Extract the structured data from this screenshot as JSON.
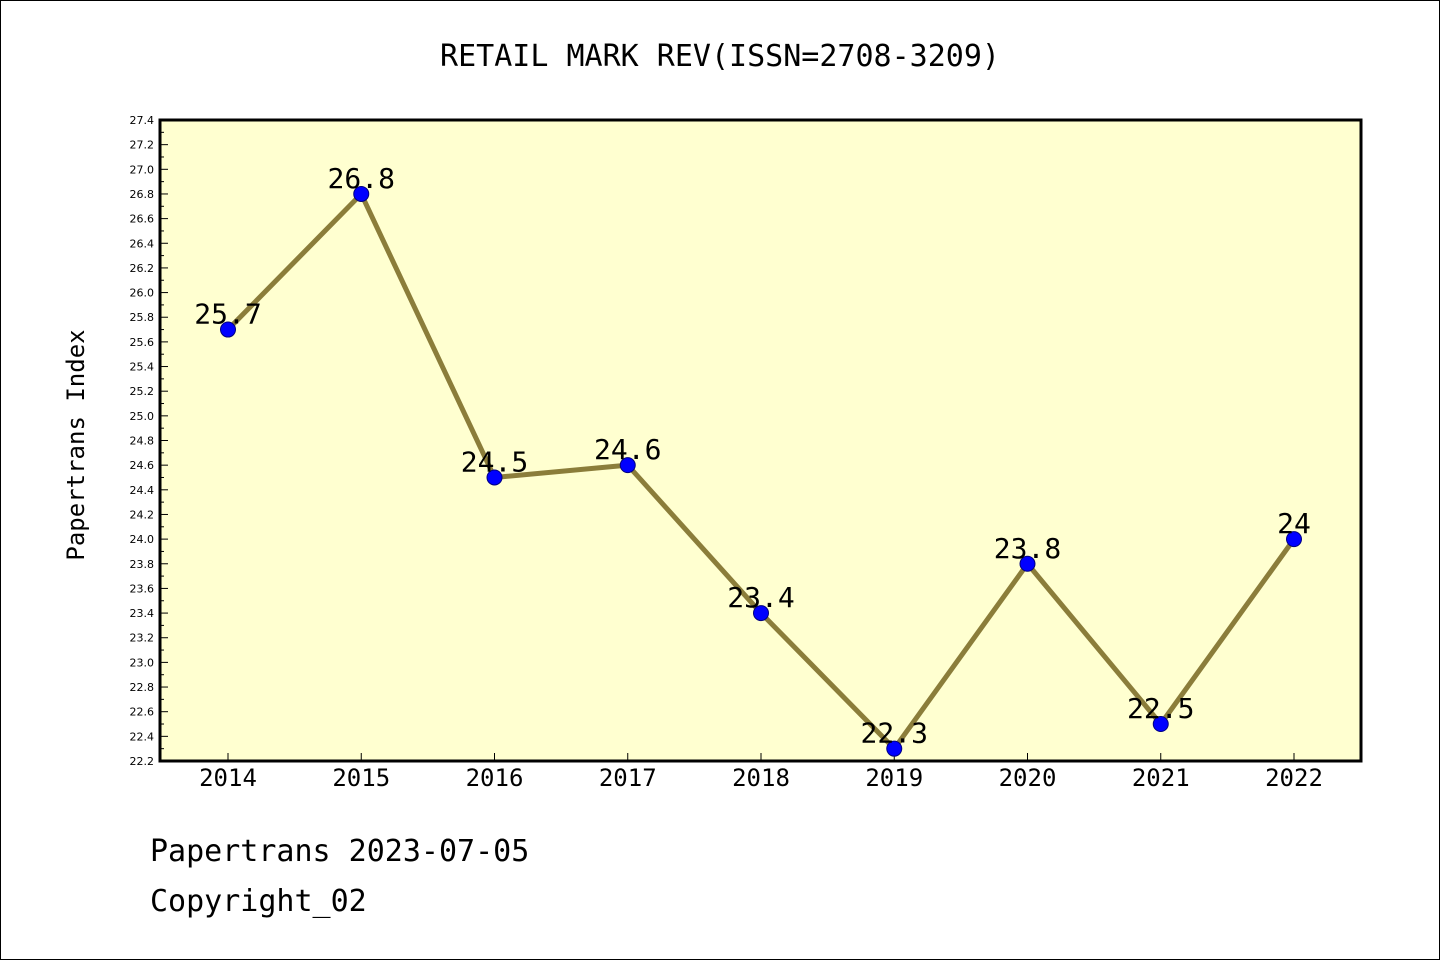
{
  "colors": {
    "plot_background": "#ffffd0",
    "line": "#8b7d3a",
    "marker_fill": "#0000ff",
    "marker_stroke": "#000080",
    "axis": "#000000"
  },
  "footer": {
    "line1": "Papertrans 2023-07-05",
    "line2": "Copyright_02"
  },
  "chart_data": {
    "type": "line",
    "title": "RETAIL MARK REV(ISSN=2708-3209)",
    "xlabel": "",
    "ylabel": "Papertrans Index",
    "categories": [
      "2014",
      "2015",
      "2016",
      "2017",
      "2018",
      "2019",
      "2020",
      "2021",
      "2022"
    ],
    "values": [
      25.7,
      26.8,
      24.5,
      24.6,
      23.4,
      22.3,
      23.8,
      22.5,
      24
    ],
    "data_labels": [
      "25.7",
      "26.8",
      "24.5",
      "24.6",
      "23.4",
      "22.3",
      "23.8",
      "22.5",
      "24"
    ],
    "ylim": [
      22.2,
      27.4
    ],
    "yticks": [
      "22.2",
      "22.4",
      "22.6",
      "22.8",
      "23.0",
      "23.2",
      "23.4",
      "23.6",
      "23.8",
      "24.0",
      "24.2",
      "24.4",
      "24.6",
      "24.8",
      "25.0",
      "25.2",
      "25.4",
      "25.6",
      "25.8",
      "26.0",
      "26.2",
      "26.4",
      "26.6",
      "26.8",
      "27.0",
      "27.2",
      "27.4"
    ],
    "grid": false,
    "legend": "none",
    "markers": "circle"
  }
}
